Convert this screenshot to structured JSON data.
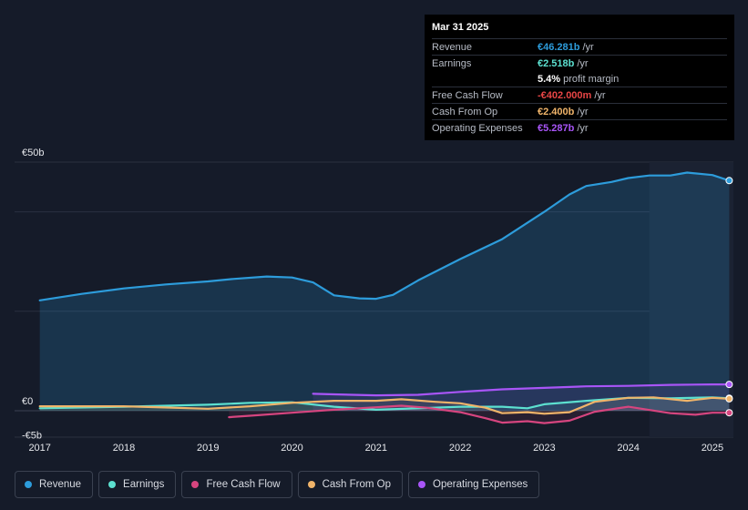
{
  "tooltip": {
    "date": "Mar 31 2025",
    "rows": [
      {
        "label": "Revenue",
        "value": "€46.281b",
        "unit": "/yr",
        "color": "#2d9cdb"
      },
      {
        "label": "Earnings",
        "value": "€2.518b",
        "unit": "/yr",
        "color": "#5ce0d0"
      },
      {
        "label": "",
        "value": "5.4%",
        "unit": "profit margin",
        "color": "#ffffff"
      },
      {
        "label": "Free Cash Flow",
        "value": "-€402.000m",
        "unit": "/yr",
        "color": "#e84545"
      },
      {
        "label": "Cash From Op",
        "value": "€2.400b",
        "unit": "/yr",
        "color": "#f0b46a"
      },
      {
        "label": "Operating Expenses",
        "value": "€5.287b",
        "unit": "/yr",
        "color": "#a855f7"
      }
    ]
  },
  "legend": [
    {
      "label": "Revenue",
      "color": "#2d9cdb"
    },
    {
      "label": "Earnings",
      "color": "#5ce0d0"
    },
    {
      "label": "Free Cash Flow",
      "color": "#d6457f"
    },
    {
      "label": "Cash From Op",
      "color": "#f0b46a"
    },
    {
      "label": "Operating Expenses",
      "color": "#a855f7"
    }
  ],
  "chart_data": {
    "type": "area",
    "title": "",
    "xlabel": "",
    "ylabel": "",
    "x_ticks": [
      "2017",
      "2018",
      "2019",
      "2020",
      "2021",
      "2022",
      "2023",
      "2024",
      "2025"
    ],
    "y_ticks": [
      {
        "value": 50,
        "label": "€50b"
      },
      {
        "value": 0,
        "label": "€0"
      },
      {
        "value": -5,
        "label": "-€5b"
      }
    ],
    "ylim": [
      -5,
      50
    ],
    "xlim": [
      2016.7,
      2025.25
    ],
    "series": [
      {
        "name": "Revenue",
        "color": "#2d9cdb",
        "fill": true,
        "points": [
          [
            2017.0,
            22.2
          ],
          [
            2017.5,
            23.5
          ],
          [
            2018.0,
            24.6
          ],
          [
            2018.5,
            25.4
          ],
          [
            2019.0,
            26.0
          ],
          [
            2019.3,
            26.5
          ],
          [
            2019.7,
            27.0
          ],
          [
            2020.0,
            26.8
          ],
          [
            2020.25,
            25.8
          ],
          [
            2020.5,
            23.2
          ],
          [
            2020.8,
            22.6
          ],
          [
            2021.0,
            22.5
          ],
          [
            2021.2,
            23.3
          ],
          [
            2021.5,
            26.2
          ],
          [
            2022.0,
            30.5
          ],
          [
            2022.5,
            34.5
          ],
          [
            2023.0,
            40.0
          ],
          [
            2023.3,
            43.5
          ],
          [
            2023.5,
            45.2
          ],
          [
            2023.8,
            46.0
          ],
          [
            2024.0,
            46.8
          ],
          [
            2024.25,
            47.3
          ],
          [
            2024.5,
            47.3
          ],
          [
            2024.7,
            47.9
          ],
          [
            2025.0,
            47.4
          ],
          [
            2025.2,
            46.281
          ]
        ]
      },
      {
        "name": "Earnings",
        "color": "#5ce0d0",
        "fill": false,
        "points": [
          [
            2017.0,
            0.5
          ],
          [
            2018.0,
            0.8
          ],
          [
            2019.0,
            1.2
          ],
          [
            2019.5,
            1.6
          ],
          [
            2020.0,
            1.7
          ],
          [
            2020.5,
            0.8
          ],
          [
            2021.0,
            0.2
          ],
          [
            2021.5,
            0.5
          ],
          [
            2022.0,
            0.8
          ],
          [
            2022.5,
            0.8
          ],
          [
            2022.8,
            0.5
          ],
          [
            2023.0,
            1.3
          ],
          [
            2023.5,
            2.0
          ],
          [
            2024.0,
            2.6
          ],
          [
            2024.5,
            2.5
          ],
          [
            2025.0,
            2.7
          ],
          [
            2025.2,
            2.518
          ]
        ]
      },
      {
        "name": "Free Cash Flow",
        "color": "#d6457f",
        "fill": false,
        "points": [
          [
            2019.25,
            -1.3
          ],
          [
            2019.5,
            -1.0
          ],
          [
            2020.0,
            -0.4
          ],
          [
            2020.5,
            0.2
          ],
          [
            2021.0,
            0.7
          ],
          [
            2021.3,
            1.0
          ],
          [
            2021.6,
            0.6
          ],
          [
            2022.0,
            -0.3
          ],
          [
            2022.3,
            -1.5
          ],
          [
            2022.5,
            -2.4
          ],
          [
            2022.8,
            -2.1
          ],
          [
            2023.0,
            -2.5
          ],
          [
            2023.3,
            -2.0
          ],
          [
            2023.6,
            -0.2
          ],
          [
            2024.0,
            0.8
          ],
          [
            2024.5,
            -0.5
          ],
          [
            2024.8,
            -0.8
          ],
          [
            2025.0,
            -0.4
          ],
          [
            2025.2,
            -0.402
          ]
        ]
      },
      {
        "name": "Cash From Op",
        "color": "#f0b46a",
        "fill": false,
        "points": [
          [
            2017.0,
            0.9
          ],
          [
            2018.0,
            0.9
          ],
          [
            2019.0,
            0.4
          ],
          [
            2019.5,
            0.9
          ],
          [
            2020.0,
            1.6
          ],
          [
            2020.5,
            2.0
          ],
          [
            2021.0,
            2.0
          ],
          [
            2021.3,
            2.3
          ],
          [
            2021.7,
            1.8
          ],
          [
            2022.0,
            1.5
          ],
          [
            2022.3,
            0.6
          ],
          [
            2022.5,
            -0.5
          ],
          [
            2022.8,
            -0.3
          ],
          [
            2023.0,
            -0.6
          ],
          [
            2023.3,
            -0.3
          ],
          [
            2023.6,
            1.8
          ],
          [
            2024.0,
            2.6
          ],
          [
            2024.3,
            2.7
          ],
          [
            2024.7,
            2.0
          ],
          [
            2025.0,
            2.6
          ],
          [
            2025.2,
            2.4
          ]
        ]
      },
      {
        "name": "Operating Expenses",
        "color": "#a855f7",
        "fill": false,
        "points": [
          [
            2020.25,
            3.4
          ],
          [
            2020.5,
            3.3
          ],
          [
            2021.0,
            3.1
          ],
          [
            2021.5,
            3.2
          ],
          [
            2022.0,
            3.8
          ],
          [
            2022.5,
            4.3
          ],
          [
            2023.0,
            4.6
          ],
          [
            2023.5,
            4.9
          ],
          [
            2024.0,
            5.0
          ],
          [
            2024.5,
            5.2
          ],
          [
            2025.0,
            5.3
          ],
          [
            2025.2,
            5.287
          ]
        ]
      }
    ],
    "forecast_start": 2024.25,
    "grid": true,
    "legend_position": "bottom"
  }
}
